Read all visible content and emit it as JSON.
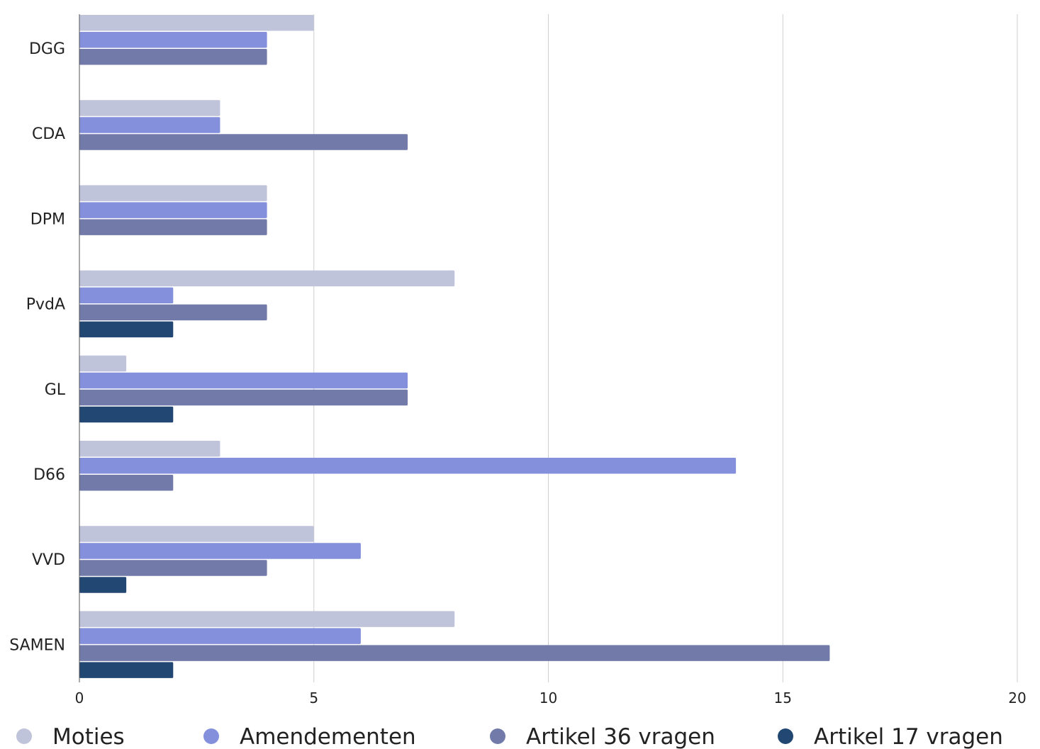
{
  "chart_data": {
    "type": "bar",
    "orientation": "horizontal",
    "categories": [
      "DGG",
      "CDA",
      "DPM",
      "PvdA",
      "GL",
      "D66",
      "VVD",
      "SAMEN"
    ],
    "series": [
      {
        "name": "Moties",
        "color": "#c0c4da",
        "values": [
          5,
          3,
          4,
          8,
          1,
          3,
          5,
          8
        ]
      },
      {
        "name": "Amendementen",
        "color": "#8490dc",
        "values": [
          4,
          3,
          4,
          2,
          7,
          14,
          6,
          6
        ]
      },
      {
        "name": "Artikel 36 vragen",
        "color": "#727aaa",
        "values": [
          4,
          7,
          4,
          4,
          7,
          2,
          4,
          16
        ]
      },
      {
        "name": "Artikel 17 vragen",
        "color": "#224773",
        "values": [
          0,
          0,
          0,
          2,
          2,
          0,
          1,
          2
        ]
      }
    ],
    "xlim": [
      0,
      20
    ],
    "xticks": [
      "0",
      "5",
      "10",
      "15",
      "20"
    ],
    "grid": true,
    "legend_position": "bottom"
  }
}
